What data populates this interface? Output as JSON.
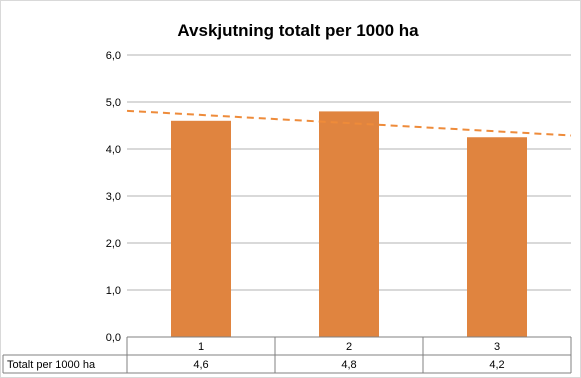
{
  "chart_data": {
    "type": "bar",
    "title": "Avskjutning totalt per 1000 ha",
    "categories": [
      "1",
      "2",
      "3"
    ],
    "series": [
      {
        "name": "Totalt per 1000 ha",
        "values": [
          4.6,
          4.8,
          4.25
        ],
        "value_labels": [
          "4,6",
          "4,8",
          "4,2"
        ]
      }
    ],
    "trendline": {
      "type": "linear",
      "style": "dashed"
    },
    "ylim": [
      0,
      6
    ],
    "yticks": [
      0,
      1,
      2,
      3,
      4,
      5,
      6
    ],
    "ytick_labels": [
      "0,0",
      "1,0",
      "2,0",
      "3,0",
      "4,0",
      "5,0",
      "6,0"
    ],
    "grid": true,
    "data_table": true,
    "legend": "none",
    "colors": {
      "bar": "#e0843f",
      "trend": "#ee8b3a",
      "grid": "#b3b3b3",
      "axis": "#808080"
    }
  }
}
